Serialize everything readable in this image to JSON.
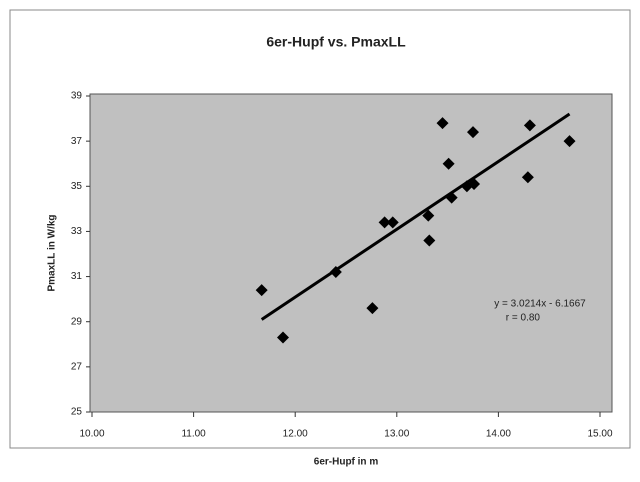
{
  "chart_data": {
    "type": "scatter",
    "title": "6er-Hupf vs. PmaxLL",
    "x_label": "6er-Hupf in m",
    "y_label": "PmaxLL in W/kg",
    "annotations": [
      "y = 3.0214x - 6.1667",
      "r = 0.80"
    ],
    "color": "#000000",
    "plot_background": "#c0c0c0",
    "grid": false,
    "x": [
      11.67,
      11.88,
      12.4,
      12.76,
      12.88,
      12.96,
      13.31,
      13.32,
      13.45,
      13.51,
      13.54,
      13.69,
      13.76,
      13.75,
      14.31,
      14.29,
      14.7
    ],
    "values": [
      30.4,
      28.3,
      31.2,
      29.6,
      33.4,
      33.4,
      33.7,
      32.6,
      37.8,
      36.0,
      34.5,
      35.0,
      35.1,
      37.4,
      37.7,
      35.4,
      37.0
    ],
    "trendline": {
      "x": [
        11.67,
        14.7
      ],
      "y": [
        29.1,
        38.2
      ]
    },
    "xlim": [
      10,
      15
    ],
    "xticks": [
      {
        "value": 10,
        "label": "10.00"
      },
      {
        "value": 11,
        "label": "11.00"
      },
      {
        "value": 12,
        "label": "12.00"
      },
      {
        "value": 13,
        "label": "13.00"
      },
      {
        "value": 14,
        "label": "14.00"
      },
      {
        "value": 15,
        "label": "15.00"
      }
    ],
    "ylim": [
      25,
      39
    ],
    "yticks": [
      25,
      27,
      29,
      31,
      33,
      35,
      37,
      39
    ]
  }
}
